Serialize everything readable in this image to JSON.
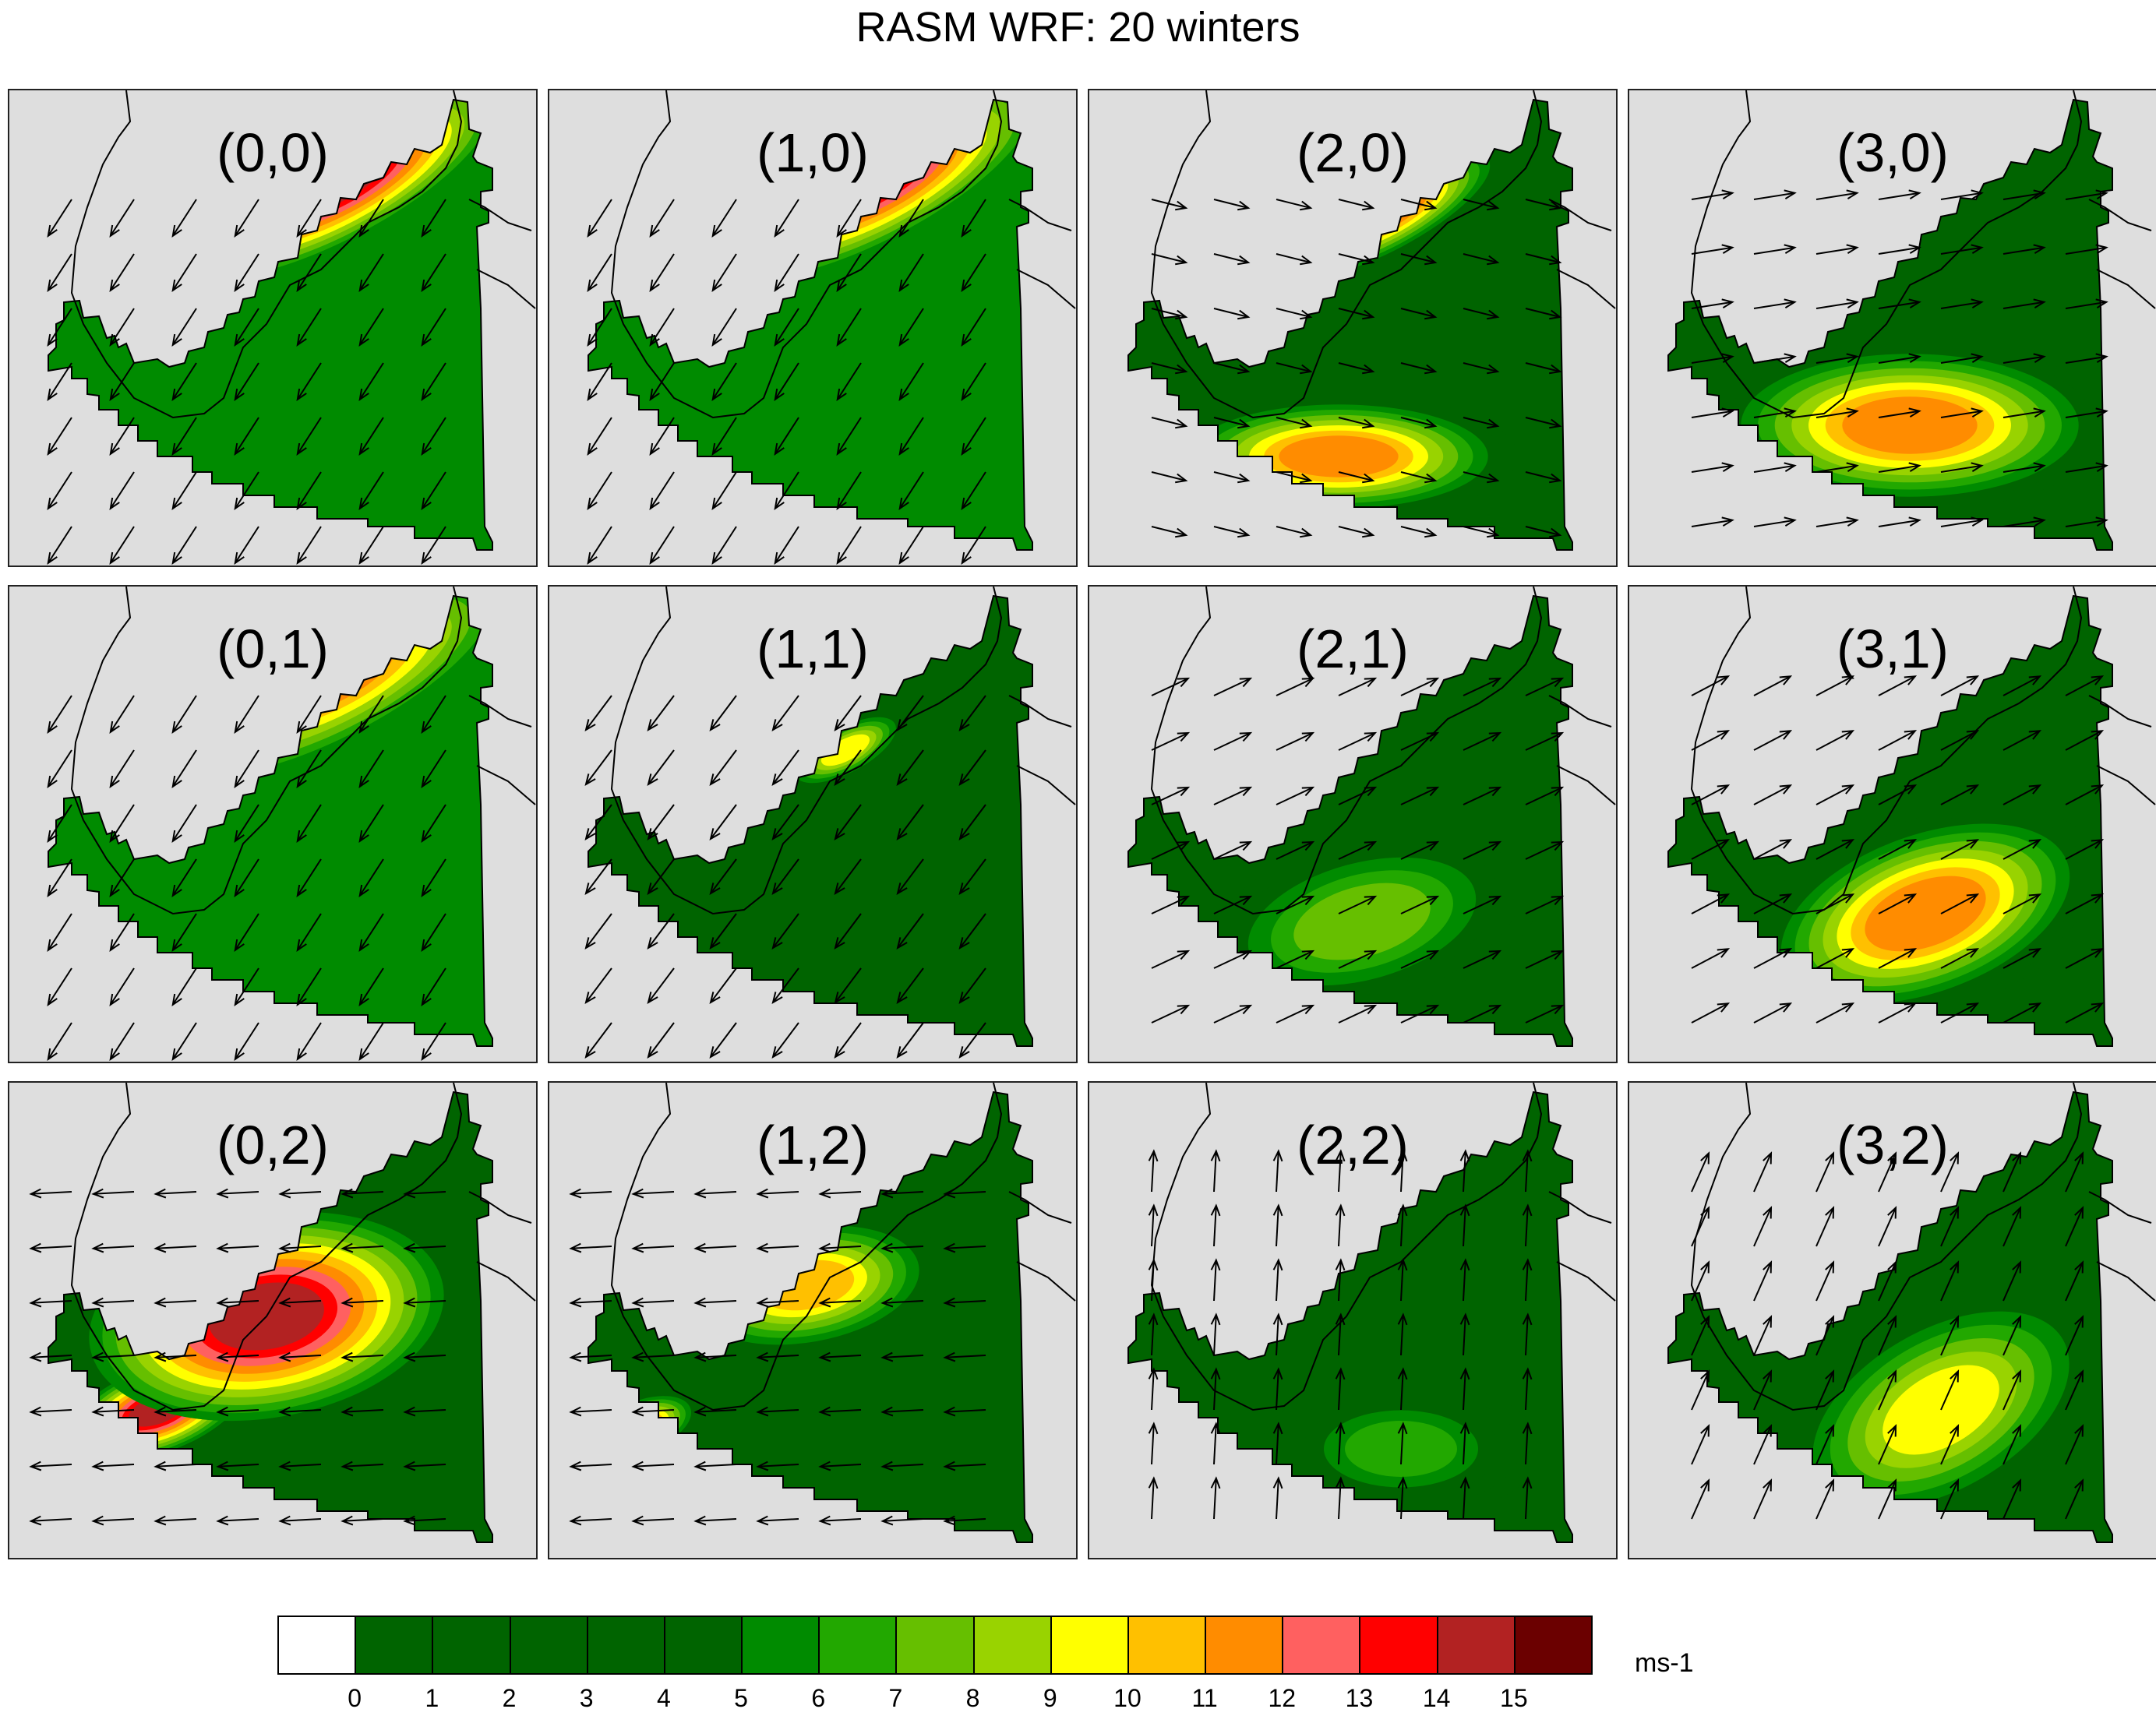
{
  "title": "RASM WRF: 20 winters",
  "panels": [
    {
      "label": "(0,0)",
      "pattern": "jet_ne",
      "intensity": 15
    },
    {
      "label": "(1,0)",
      "pattern": "jet_ne",
      "intensity": 14
    },
    {
      "label": "(2,0)",
      "pattern": "jet_ne_east_south",
      "intensity": 12
    },
    {
      "label": "(3,0)",
      "pattern": "east_south_strong",
      "intensity": 12
    },
    {
      "label": "(0,1)",
      "pattern": "jet_ne",
      "intensity": 12
    },
    {
      "label": "(1,1)",
      "pattern": "weak_coast",
      "intensity": 10
    },
    {
      "label": "(2,1)",
      "pattern": "ne_flow_moderate",
      "intensity": 8
    },
    {
      "label": "(3,1)",
      "pattern": "ne_flow_strong",
      "intensity": 12
    },
    {
      "label": "(0,2)",
      "pattern": "west_flow_tip",
      "intensity": 15
    },
    {
      "label": "(1,2)",
      "pattern": "west_flow_weak",
      "intensity": 11
    },
    {
      "label": "(2,2)",
      "pattern": "north_flow_weak",
      "intensity": 7
    },
    {
      "label": "(3,2)",
      "pattern": "north_flow_moderate",
      "intensity": 10
    }
  ],
  "colorbar": {
    "unit": "ms-1",
    "ticks": [
      "0",
      "1",
      "2",
      "3",
      "4",
      "5",
      "6",
      "7",
      "8",
      "9",
      "10",
      "11",
      "12",
      "13",
      "14",
      "15"
    ],
    "colors": [
      "#ffffff",
      "#006400",
      "#006400",
      "#006400",
      "#006400",
      "#006400",
      "#008b00",
      "#22a800",
      "#66bf00",
      "#99d300",
      "#ffff00",
      "#ffc000",
      "#ff8c00",
      "#ff6060",
      "#ff0000",
      "#b22222",
      "#6b0000"
    ]
  }
}
